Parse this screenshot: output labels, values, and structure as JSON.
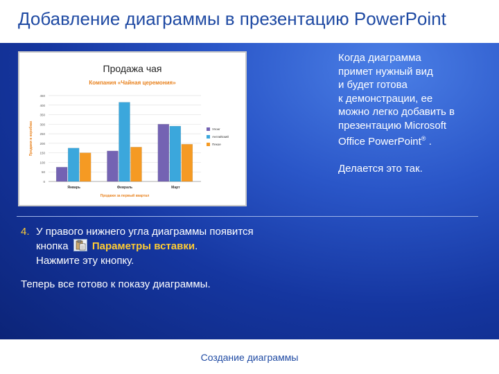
{
  "slide": {
    "title": "Добавление диаграммы в презентацию PowerPoint",
    "footer": "Создание диаграммы"
  },
  "side_text": {
    "line1": "Когда диаграмма",
    "line2": "примет нужный вид",
    "line3": "и будет готова",
    "line4": "к демонстрации, ее",
    "line5": "можно легко добавить в",
    "line6": "презентацию Microsoft",
    "line7_a": "Office PowerPoint",
    "line7_reg": "®",
    "line7_b": " .",
    "line8": "Делается это так."
  },
  "step": {
    "number": "4.",
    "line1": "У правого нижнего угла диаграммы появится",
    "line2_a": "кнопка",
    "line2_bold": "Параметры вставки",
    "line2_b": ".",
    "line3": "Нажмите эту кнопку."
  },
  "final_text": "Теперь все готово к показу диаграммы.",
  "colors": {
    "title": "#1f4aa3",
    "accent": "#ffcc33",
    "bg_dark": "#1536a0",
    "series": [
      "#7463b3",
      "#3ba7dc",
      "#f59a23"
    ]
  },
  "icons": {
    "paste": "paste-options-icon"
  },
  "chart_data": {
    "type": "bar",
    "title": "Продажа чая",
    "subtitle": "Компания «Чайная церемония»",
    "xlabel": "Продажи за первый квартал",
    "ylabel": "Продажи в коробках",
    "categories": [
      "Январь",
      "Февраль",
      "Март"
    ],
    "series": [
      {
        "name": "Улонг",
        "values": [
          75,
          160,
          300
        ]
      },
      {
        "name": "Английский",
        "values": [
          175,
          415,
          290
        ]
      },
      {
        "name": "Пекое",
        "values": [
          150,
          180,
          195
        ]
      }
    ],
    "y_ticks": [
      "0",
      "50",
      "100",
      "150",
      "200",
      "250",
      "300",
      "350",
      "400",
      "450"
    ],
    "ylim": [
      0,
      450
    ],
    "legend": "right",
    "grid": true
  }
}
